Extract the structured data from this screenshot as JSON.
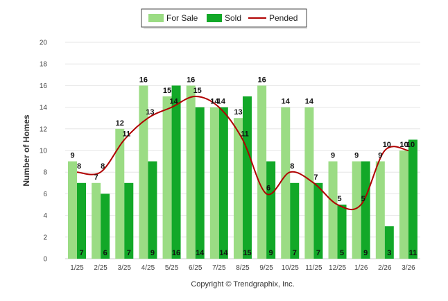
{
  "chart_data": {
    "type": "bar",
    "ylabel": "Number of Homes",
    "ylim": [
      0,
      20
    ],
    "yticks": [
      0,
      2,
      4,
      6,
      8,
      10,
      12,
      14,
      16,
      18,
      20
    ],
    "grid": true,
    "legend_position": "top-center",
    "categories": [
      "1/25",
      "2/25",
      "3/25",
      "4/25",
      "5/25",
      "6/25",
      "7/25",
      "8/25",
      "9/25",
      "10/25",
      "11/25",
      "12/25",
      "1/26",
      "2/26",
      "3/26"
    ],
    "series": [
      {
        "name": "For Sale",
        "kind": "bar",
        "color": "#9bdc84",
        "values": [
          9,
          7,
          12,
          16,
          15,
          16,
          14,
          13,
          16,
          14,
          14,
          9,
          9,
          9,
          10
        ]
      },
      {
        "name": "Sold",
        "kind": "bar",
        "color": "#12a828",
        "values": [
          7,
          6,
          7,
          9,
          16,
          14,
          14,
          15,
          9,
          7,
          7,
          5,
          9,
          3,
          11
        ]
      },
      {
        "name": "Pended",
        "kind": "line",
        "color": "#b00000",
        "values": [
          8,
          8,
          11,
          13,
          14,
          15,
          14,
          11,
          6,
          8,
          7,
          5,
          5,
          10,
          10
        ]
      }
    ]
  },
  "footer": {
    "copyright": "Copyright © Trendgraphix, Inc."
  }
}
